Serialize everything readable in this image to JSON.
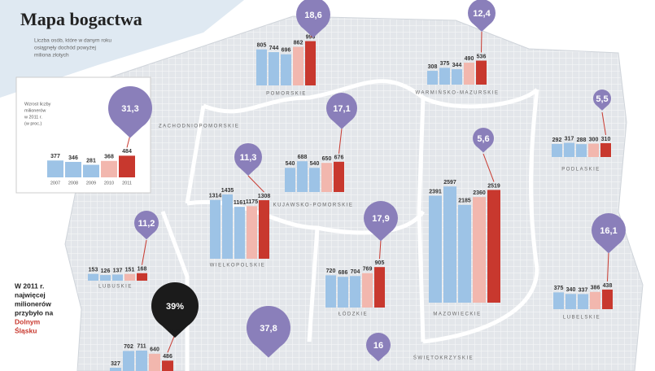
{
  "title": "Mapa bogactwa",
  "subtitle": [
    "Liczba osób, które w danym roku",
    "osiągnęły dochód powyżej",
    "miliona złotych"
  ],
  "inset": {
    "legend": [
      "Wzrost liczby",
      "milionerów",
      "w 2011 r.",
      "(w proc.)"
    ],
    "years": [
      "2007",
      "2008",
      "2009",
      "2010",
      "2011"
    ]
  },
  "callout": [
    "W 2011 r.",
    "najwięcej",
    "milionerów",
    "przybyło na",
    "Dolnym",
    "Śląsku"
  ],
  "regions": [
    {
      "name": "POMORSKIE",
      "pin": "18,6",
      "values": [
        805,
        744,
        696,
        862,
        990
      ]
    },
    {
      "name": "WARMIŃSKO-MAZURSKIE",
      "pin": "12,4",
      "values": [
        308,
        375,
        344,
        490,
        536
      ]
    },
    {
      "name": "ZACHODNIOPOMORSKIE",
      "pin": "31,3",
      "values": [
        377,
        346,
        281,
        368,
        484
      ]
    },
    {
      "name": "PODLASKIE",
      "pin": "5,5",
      "values": [
        292,
        317,
        288,
        300,
        310
      ]
    },
    {
      "name": "KUJAWSKO-POMORSKIE",
      "pin": "17,1",
      "values": [
        540,
        688,
        540,
        650,
        676
      ]
    },
    {
      "name": "WIELKOPOLSKIE",
      "pin": "11,3",
      "values": [
        1314,
        1435,
        1161,
        1175,
        1308
      ]
    },
    {
      "name": "MAZOWIECKIE",
      "pin": "5,6",
      "values": [
        2391,
        2597,
        2185,
        2360,
        2519
      ]
    },
    {
      "name": "LUBUSKIE",
      "pin": "11,2",
      "values": [
        153,
        126,
        137,
        151,
        168
      ]
    },
    {
      "name": "ŁÓDZKIE",
      "pin": "17,9",
      "values": [
        720,
        686,
        704,
        769,
        905
      ]
    },
    {
      "name": "LUBELSKIE",
      "pin": "16,1",
      "values": [
        375,
        340,
        337,
        386,
        438
      ]
    },
    {
      "pin": "39%",
      "values": [
        327,
        702,
        711,
        640,
        486
      ]
    },
    {
      "pin": "37,8",
      "values": []
    },
    {
      "name": "ŚWIĘTOKRZYSKIE",
      "pin": "16",
      "values": []
    }
  ]
}
